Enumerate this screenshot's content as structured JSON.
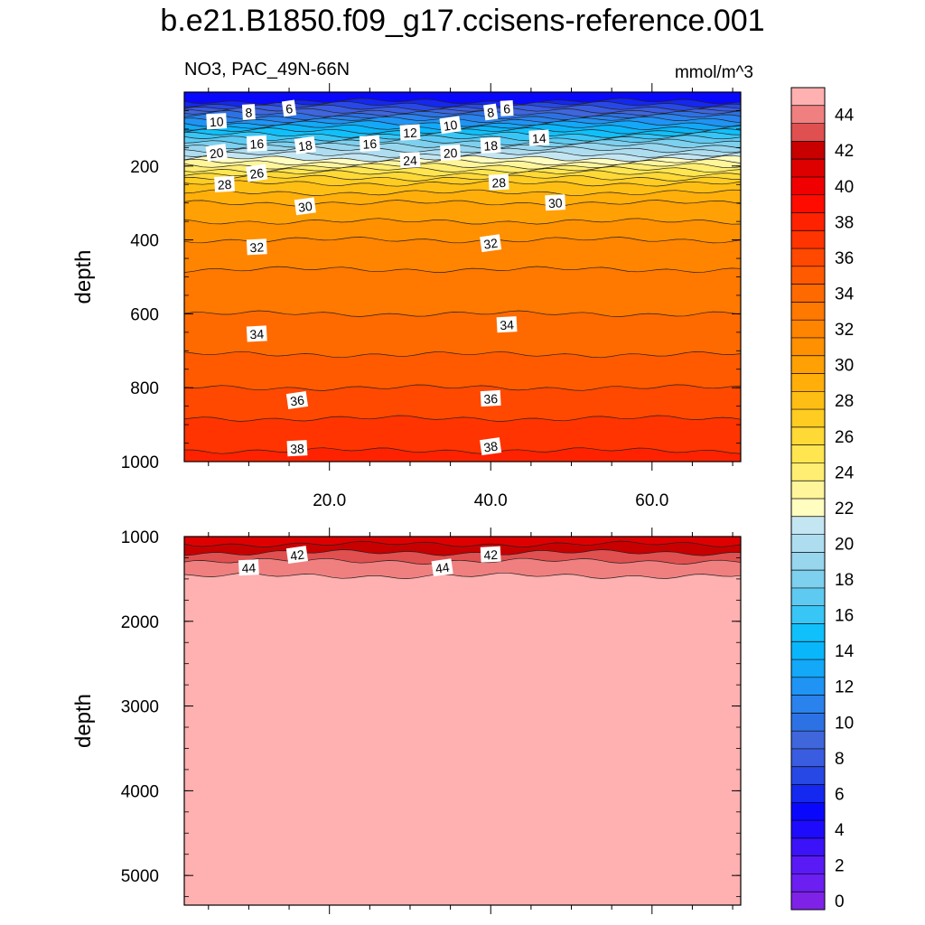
{
  "chart_data": {
    "type": "heatmap",
    "title": "b.e21.B1850.f09_g17.ccisens-reference.001",
    "subtitle_left": "NO3, PAC_49N-66N",
    "subtitle_right": "mmol/m^3",
    "xlabel": "",
    "ylabel": "depth",
    "xlim": [
      2,
      71
    ],
    "x_ticks": [
      "20.0",
      "40.0",
      "60.0"
    ],
    "colorbar": {
      "levels": [
        0,
        1,
        2,
        3,
        4,
        5,
        6,
        7,
        8,
        9,
        10,
        11,
        12,
        13,
        14,
        15,
        16,
        17,
        18,
        19,
        20,
        21,
        22,
        23,
        24,
        25,
        26,
        27,
        28,
        29,
        30,
        31,
        32,
        33,
        34,
        35,
        36,
        37,
        38,
        39,
        40,
        41,
        42,
        43,
        44,
        45
      ],
      "tick_labels": [
        "0",
        "2",
        "4",
        "6",
        "8",
        "10",
        "12",
        "14",
        "16",
        "18",
        "20",
        "22",
        "24",
        "26",
        "28",
        "30",
        "32",
        "34",
        "36",
        "38",
        "40",
        "42",
        "44"
      ],
      "colors": [
        "#7f22e8",
        "#6b1ff0",
        "#5a1af5",
        "#3c12f8",
        "#1e0bfb",
        "#0a08fc",
        "#1428f0",
        "#2848e6",
        "#3a5ce0",
        "#4066dc",
        "#2d72e4",
        "#2a82ec",
        "#1f94f4",
        "#13a8f8",
        "#0ab6fa",
        "#10c0fa",
        "#38c6f6",
        "#5ecaf2",
        "#7dd0ee",
        "#98d6ee",
        "#aeddf0",
        "#c4e6f2",
        "#fffdc0",
        "#fff59a",
        "#ffee72",
        "#ffe650",
        "#ffd936",
        "#ffcc22",
        "#ffbe14",
        "#ffae0a",
        "#ffa004",
        "#ff9000",
        "#ff8400",
        "#ff7800",
        "#ff6a00",
        "#ff5a00",
        "#ff4800",
        "#ff3400",
        "#ff2200",
        "#ff0c00",
        "#f00000",
        "#de0000",
        "#c80000",
        "#e05050",
        "#f08080",
        "#ffb0b0"
      ]
    },
    "panels": [
      {
        "name": "upper",
        "ylim": [
          0,
          1000
        ],
        "y_ticks": [
          200,
          400,
          600,
          800,
          1000
        ],
        "y_tick_labels": [
          "200",
          "400",
          "600",
          "800",
          "1000"
        ],
        "depth_profile": [
          [
            0,
            5
          ],
          [
            25,
            6
          ],
          [
            50,
            9
          ],
          [
            75,
            12
          ],
          [
            100,
            14.5
          ],
          [
            125,
            17
          ],
          [
            150,
            19.5
          ],
          [
            175,
            21.5
          ],
          [
            200,
            24
          ],
          [
            225,
            26.5
          ],
          [
            250,
            28.2
          ],
          [
            300,
            30
          ],
          [
            350,
            31
          ],
          [
            400,
            32
          ],
          [
            450,
            32.7
          ],
          [
            500,
            33.2
          ],
          [
            550,
            33.6
          ],
          [
            600,
            34
          ],
          [
            650,
            34.4
          ],
          [
            700,
            34.9
          ],
          [
            750,
            35.4
          ],
          [
            800,
            36
          ],
          [
            850,
            36.6
          ],
          [
            900,
            37.2
          ],
          [
            950,
            37.8
          ],
          [
            1000,
            38.3
          ]
        ],
        "contour_labels": [
          {
            "value": "6",
            "x": 15,
            "depth": 45
          },
          {
            "value": "8",
            "x": 10,
            "depth": 55
          },
          {
            "value": "10",
            "x": 6,
            "depth": 80
          },
          {
            "value": "8",
            "x": 40,
            "depth": 55
          },
          {
            "value": "6",
            "x": 42,
            "depth": 45
          },
          {
            "value": "12",
            "x": 30,
            "depth": 110
          },
          {
            "value": "10",
            "x": 35,
            "depth": 90
          },
          {
            "value": "14",
            "x": 46,
            "depth": 125
          },
          {
            "value": "16",
            "x": 11,
            "depth": 140
          },
          {
            "value": "18",
            "x": 17,
            "depth": 145
          },
          {
            "value": "16",
            "x": 25,
            "depth": 140
          },
          {
            "value": "18",
            "x": 40,
            "depth": 145
          },
          {
            "value": "20",
            "x": 6,
            "depth": 165
          },
          {
            "value": "20",
            "x": 35,
            "depth": 165
          },
          {
            "value": "24",
            "x": 30,
            "depth": 185
          },
          {
            "value": "26",
            "x": 11,
            "depth": 220
          },
          {
            "value": "28",
            "x": 7,
            "depth": 250
          },
          {
            "value": "28",
            "x": 41,
            "depth": 245
          },
          {
            "value": "30",
            "x": 17,
            "depth": 310
          },
          {
            "value": "30",
            "x": 48,
            "depth": 300
          },
          {
            "value": "32",
            "x": 11,
            "depth": 420
          },
          {
            "value": "32",
            "x": 40,
            "depth": 410
          },
          {
            "value": "34",
            "x": 11,
            "depth": 655
          },
          {
            "value": "34",
            "x": 42,
            "depth": 630
          },
          {
            "value": "36",
            "x": 16,
            "depth": 835
          },
          {
            "value": "36",
            "x": 40,
            "depth": 830
          },
          {
            "value": "38",
            "x": 16,
            "depth": 965
          },
          {
            "value": "38",
            "x": 40,
            "depth": 960
          }
        ]
      },
      {
        "name": "lower",
        "ylim": [
          1000,
          5350
        ],
        "y_ticks": [
          1000,
          2000,
          3000,
          4000,
          5000
        ],
        "y_tick_labels": [
          "1000",
          "2000",
          "3000",
          "4000",
          "5000"
        ],
        "depth_profile": [
          [
            1000,
            41.2
          ],
          [
            1050,
            41.6
          ],
          [
            1100,
            42.1
          ],
          [
            1150,
            42.6
          ],
          [
            1200,
            43.1
          ],
          [
            1250,
            43.6
          ],
          [
            1300,
            44.1
          ],
          [
            1400,
            44.6
          ],
          [
            1480,
            45.1
          ],
          [
            4060,
            45.1
          ],
          [
            4080,
            44.5
          ],
          [
            5350,
            44.5
          ]
        ],
        "contour_labels": [
          {
            "value": "42",
            "x": 16,
            "depth": 1220
          },
          {
            "value": "42",
            "x": 40,
            "depth": 1215
          },
          {
            "value": "44",
            "x": 10,
            "depth": 1370
          },
          {
            "value": "44",
            "x": 34,
            "depth": 1370
          }
        ]
      }
    ]
  }
}
